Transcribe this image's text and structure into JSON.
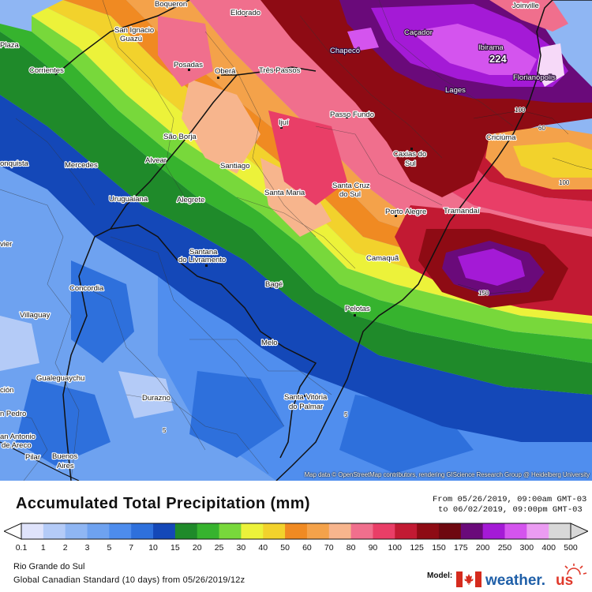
{
  "map": {
    "attribution": "Map data © OpenStreetMap contributors, rendering GIScience Research Group @ Heidelberg University",
    "max_value_label": "224",
    "cities": [
      {
        "name": "Boqueron"
      },
      {
        "name": "Eldorado"
      },
      {
        "name": "Joinville"
      },
      {
        "name": "San Ignacio"
      },
      {
        "name": "Guazú"
      },
      {
        "name": "Caçador"
      },
      {
        "name": "Chapecó"
      },
      {
        "name": "Ibirama"
      },
      {
        "name": "Plaza"
      },
      {
        "name": "Posadas"
      },
      {
        "name": "Oberá"
      },
      {
        "name": "Três Passos"
      },
      {
        "name": "Corrientes"
      },
      {
        "name": "Lages"
      },
      {
        "name": "Florianópolis"
      },
      {
        "name": "Passo Fundo"
      },
      {
        "name": "Ijuí"
      },
      {
        "name": "Criciúma"
      },
      {
        "name": "São Borja"
      },
      {
        "name": "Caxias do"
      },
      {
        "name": "Sul"
      },
      {
        "name": "onquista"
      },
      {
        "name": "Mercedes"
      },
      {
        "name": "Alvear"
      },
      {
        "name": "Santiago"
      },
      {
        "name": "Santa Cruz"
      },
      {
        "name": "do Sul"
      },
      {
        "name": "Santa Maria"
      },
      {
        "name": "Uruguaiana"
      },
      {
        "name": "Alegrete"
      },
      {
        "name": "Porto Alegre"
      },
      {
        "name": "Tramandaí"
      },
      {
        "name": "Santana"
      },
      {
        "name": "do Livramento"
      },
      {
        "name": "vier"
      },
      {
        "name": "Camaquã"
      },
      {
        "name": "Concordia"
      },
      {
        "name": "Bagé"
      },
      {
        "name": "Villaguay"
      },
      {
        "name": "Pelotas"
      },
      {
        "name": "Melo"
      },
      {
        "name": "Gualeguaychu"
      },
      {
        "name": "ción"
      },
      {
        "name": "Durazno"
      },
      {
        "name": "Santa Vitória"
      },
      {
        "name": "do Palmar"
      },
      {
        "name": "n Pedro"
      },
      {
        "name": "an Antonio"
      },
      {
        "name": "de Areco"
      },
      {
        "name": "Pilar"
      },
      {
        "name": "Buenos"
      },
      {
        "name": "Aires"
      }
    ],
    "contour_labels": [
      "100",
      "60",
      "100",
      "150",
      "5",
      "5"
    ]
  },
  "title": "Accumulated Total Precipitation (mm)",
  "valid": {
    "from": "From 05/26/2019, 09:00am GMT-03",
    "to": "to 06/02/2019, 09:00pm GMT-03"
  },
  "scale": {
    "ticks": [
      "0.1",
      "1",
      "2",
      "3",
      "5",
      "7",
      "10",
      "15",
      "20",
      "25",
      "30",
      "40",
      "50",
      "60",
      "70",
      "80",
      "90",
      "100",
      "125",
      "150",
      "175",
      "200",
      "250",
      "300",
      "400",
      "500"
    ],
    "colors": [
      "#dfe3fb",
      "#b4cbf7",
      "#8fb6f3",
      "#6ea2f0",
      "#4d8ced",
      "#2e70dc",
      "#1448b8",
      "#1f8a2a",
      "#36b32e",
      "#78d83b",
      "#ecf23a",
      "#f2d22c",
      "#f08a22",
      "#f4a24a",
      "#f7b58d",
      "#f06f8d",
      "#e93e67",
      "#c21a33",
      "#8e0b14",
      "#6e0810",
      "#6a0a7a",
      "#a41ad6",
      "#d454ee",
      "#eb9cf2",
      "#d8d8d8"
    ]
  },
  "region": "Rio Grande do Sul",
  "model_line": "Global Canadian Standard (10 days) from 05/26/2019/12z",
  "model_label": "Model:",
  "logo": {
    "text": "weather.",
    "suffix": "us"
  }
}
